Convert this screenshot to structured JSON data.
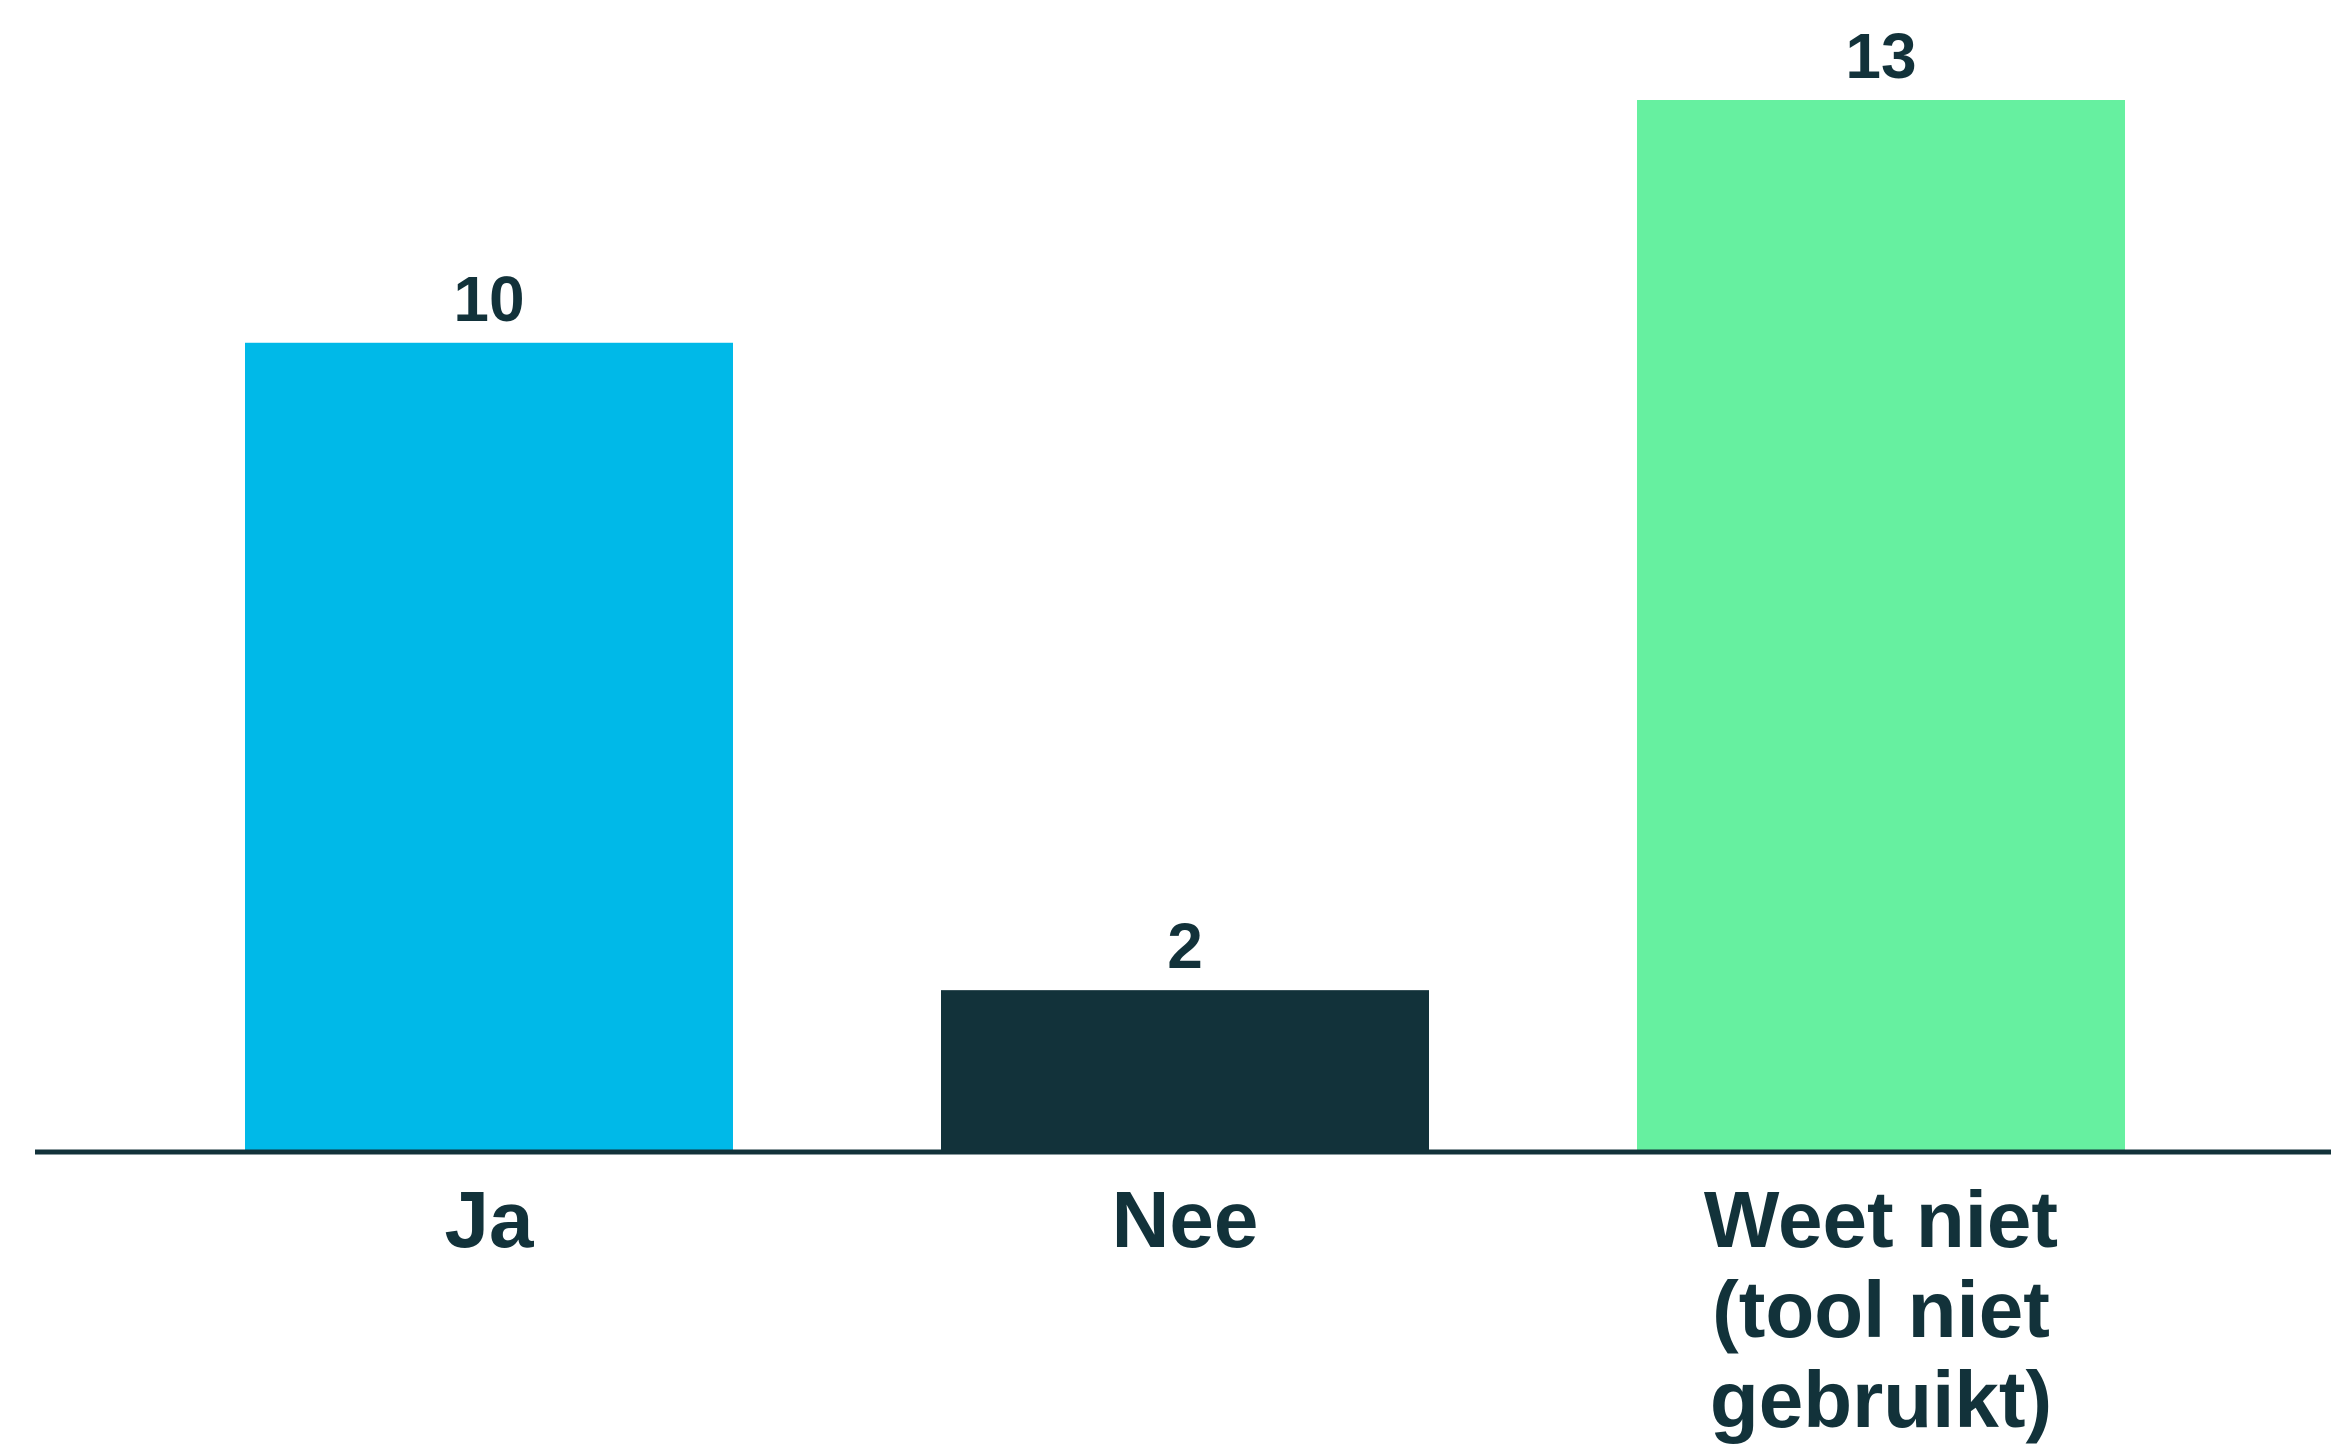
{
  "chart_data": {
    "type": "bar",
    "title": "",
    "xlabel": "",
    "ylabel": "",
    "categories": [
      [
        "Ja"
      ],
      [
        "Nee"
      ],
      [
        "Weet niet",
        "(tool niet",
        "gebruikt)"
      ]
    ],
    "values": [
      10,
      2,
      13
    ],
    "value_labels": [
      "10",
      "2",
      "13"
    ],
    "colors": [
      "#00B9E8",
      "#12323A",
      "#66F0A0"
    ],
    "text_color": "#12323A",
    "axis_color": "#12323A",
    "ylim": [
      0,
      13
    ],
    "grid": false,
    "legend": "none"
  }
}
